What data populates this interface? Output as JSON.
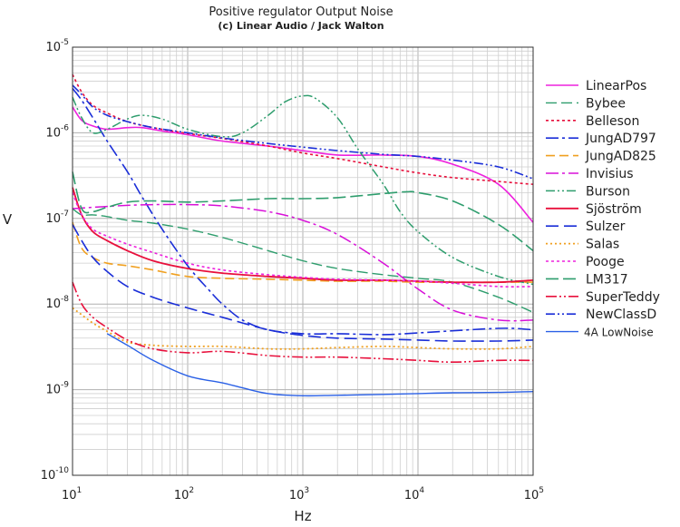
{
  "chart_data": {
    "type": "line",
    "title": "Positive regulator Output Noise",
    "subtitle": "(c) Linear Audio / Jack Walton",
    "xlabel": "Hz",
    "ylabel": "V",
    "x_scale": "log",
    "y_scale": "log",
    "xlim": [
      10,
      100000
    ],
    "ylim": [
      1e-10,
      1e-05
    ],
    "grid": true,
    "legend_position": "right",
    "x_tick_labels": [
      {
        "value": 10,
        "base": "10",
        "exp": "1"
      },
      {
        "value": 100,
        "base": "10",
        "exp": "2"
      },
      {
        "value": 1000,
        "base": "10",
        "exp": "3"
      },
      {
        "value": 10000,
        "base": "10",
        "exp": "4"
      },
      {
        "value": 100000,
        "base": "10",
        "exp": "5"
      }
    ],
    "y_tick_labels": [
      {
        "value": 1e-05,
        "base": "10",
        "exp": "-5"
      },
      {
        "value": 1e-06,
        "base": "10",
        "exp": "-6"
      },
      {
        "value": 1e-07,
        "base": "10",
        "exp": "-7"
      },
      {
        "value": 1e-08,
        "base": "10",
        "exp": "-8"
      },
      {
        "value": 1e-09,
        "base": "10",
        "exp": "-9"
      },
      {
        "value": 1e-10,
        "base": "10",
        "exp": "-10"
      }
    ],
    "series": [
      {
        "name": "LinearPos",
        "color": "#ee22dd",
        "dash": "",
        "width": 1.6,
        "x": [
          10,
          12,
          15,
          20,
          30,
          40,
          60,
          100,
          200,
          500,
          1000,
          2000,
          5000,
          10000,
          20000,
          50000,
          100000
        ],
        "y": [
          2e-06,
          1.4e-06,
          1.2e-06,
          1.1e-06,
          1.15e-06,
          1.15e-06,
          1.05e-06,
          9.5e-07,
          8e-07,
          7e-07,
          6.2e-07,
          5.5e-07,
          5.5e-07,
          5.3e-07,
          4.3e-07,
          2.5e-07,
          9e-08
        ]
      },
      {
        "name": "Bybee",
        "color": "#2e9d6d",
        "dash": "12,5",
        "width": 1.4,
        "x": [
          10,
          12,
          15,
          20,
          30,
          50,
          100,
          200,
          500,
          1000,
          2000,
          5000,
          10000,
          20000,
          50000,
          100000
        ],
        "y": [
          1.3e-07,
          1.1e-07,
          1.1e-07,
          1.05e-07,
          9.5e-08,
          8.8e-08,
          7.5e-08,
          6e-08,
          4.2e-08,
          3.2e-08,
          2.6e-08,
          2.2e-08,
          2e-08,
          1.8e-08,
          1.2e-08,
          8e-09
        ]
      },
      {
        "name": "Belleson",
        "color": "#e8103c",
        "dash": "3,3",
        "width": 1.6,
        "x": [
          10,
          12,
          15,
          20,
          30,
          50,
          100,
          200,
          500,
          1000,
          2000,
          5000,
          10000,
          20000,
          50000,
          100000
        ],
        "y": [
          4.8e-06,
          3e-06,
          2.1e-06,
          1.7e-06,
          1.35e-06,
          1.15e-06,
          9.8e-07,
          8.6e-07,
          7e-07,
          5.8e-07,
          5e-07,
          4e-07,
          3.4e-07,
          3e-07,
          2.7e-07,
          2.5e-07
        ]
      },
      {
        "name": "JungAD797",
        "color": "#1a2ed8",
        "dash": "14,4,3,4",
        "width": 1.6,
        "x": [
          10,
          12,
          15,
          20,
          30,
          40,
          60,
          100,
          150,
          200,
          300,
          500,
          1000,
          2000,
          5000,
          10000,
          50000,
          100000
        ],
        "y": [
          3.3e-06,
          2.4e-06,
          1.5e-06,
          8e-07,
          3.5e-07,
          1.8e-07,
          7.5e-08,
          2.8e-08,
          1.5e-08,
          1e-08,
          6.5e-09,
          5e-09,
          4.5e-09,
          4.5e-09,
          4.4e-09,
          4.6e-09,
          5.2e-09,
          5e-09
        ]
      },
      {
        "name": "JungAD825",
        "color": "#f0a020",
        "dash": "10,5",
        "width": 1.6,
        "x": [
          10,
          12,
          15,
          20,
          30,
          50,
          100,
          200,
          500,
          1000,
          2000,
          5000,
          10000,
          50000,
          100000
        ],
        "y": [
          9e-08,
          4.5e-08,
          3.5e-08,
          3e-08,
          2.8e-08,
          2.5e-08,
          2.1e-08,
          2e-08,
          1.95e-08,
          1.9e-08,
          1.85e-08,
          1.85e-08,
          1.8e-08,
          1.8e-08,
          1.8e-08
        ]
      },
      {
        "name": "Invisius",
        "color": "#d810d8",
        "dash": "14,4,3,4",
        "width": 1.5,
        "x": [
          10,
          12,
          15,
          20,
          30,
          50,
          100,
          200,
          500,
          1000,
          2000,
          5000,
          10000,
          20000,
          50000,
          100000
        ],
        "y": [
          1.3e-07,
          1.32e-07,
          1.35e-07,
          1.38e-07,
          1.42e-07,
          1.45e-07,
          1.45e-07,
          1.4e-07,
          1.2e-07,
          9.5e-08,
          6.5e-08,
          3e-08,
          1.5e-08,
          8.5e-09,
          6.5e-09,
          6.5e-09
        ]
      },
      {
        "name": "Burson",
        "color": "#2e9d6d",
        "dash": "10,3,2,3,2,3",
        "width": 1.5,
        "x": [
          10,
          12,
          15,
          20,
          30,
          40,
          60,
          100,
          200,
          300,
          500,
          700,
          1000,
          1300,
          2000,
          3000,
          5000,
          7000,
          10000,
          20000,
          50000,
          100000
        ],
        "y": [
          2.6e-06,
          1.5e-06,
          1e-06,
          1.1e-06,
          1.45e-06,
          1.6e-06,
          1.45e-06,
          1.1e-06,
          9e-07,
          1e-06,
          1.6e-06,
          2.3e-06,
          2.7e-06,
          2.5e-06,
          1.5e-06,
          6.5e-07,
          2.5e-07,
          1.2e-07,
          7e-08,
          3.5e-08,
          2.1e-08,
          1.7e-08
        ]
      },
      {
        "name": "Sjöström",
        "color": "#e8103c",
        "dash": "",
        "width": 1.8,
        "x": [
          10,
          12,
          15,
          20,
          30,
          50,
          100,
          200,
          500,
          1000,
          2000,
          5000,
          10000,
          20000,
          50000,
          100000
        ],
        "y": [
          2.3e-07,
          1.1e-07,
          7e-08,
          5.5e-08,
          4.2e-08,
          3.2e-08,
          2.6e-08,
          2.3e-08,
          2.1e-08,
          2e-08,
          1.9e-08,
          1.9e-08,
          1.85e-08,
          1.8e-08,
          1.8e-08,
          1.9e-08
        ]
      },
      {
        "name": "Sulzer",
        "color": "#1a2ed8",
        "dash": "14,6",
        "width": 1.6,
        "x": [
          10,
          12,
          15,
          20,
          30,
          50,
          100,
          200,
          500,
          1000,
          2000,
          5000,
          10000,
          20000,
          50000,
          100000
        ],
        "y": [
          8.5e-08,
          5.5e-08,
          3.5e-08,
          2.4e-08,
          1.6e-08,
          1.2e-08,
          9e-09,
          7e-09,
          5e-09,
          4.3e-09,
          4e-09,
          3.9e-09,
          3.8e-09,
          3.7e-09,
          3.7e-09,
          3.8e-09
        ]
      },
      {
        "name": "Salas",
        "color": "#f0a020",
        "dash": "2,3",
        "width": 1.8,
        "x": [
          10,
          12,
          15,
          20,
          30,
          50,
          100,
          200,
          500,
          1000,
          2000,
          5000,
          10000,
          20000,
          50000,
          100000
        ],
        "y": [
          9e-09,
          7.5e-09,
          6e-09,
          4.8e-09,
          3.6e-09,
          3.3e-09,
          3.2e-09,
          3.2e-09,
          3e-09,
          3e-09,
          3.1e-09,
          3.2e-09,
          3.1e-09,
          3e-09,
          3e-09,
          3.2e-09
        ]
      },
      {
        "name": "Pooge",
        "color": "#ee22dd",
        "dash": "3,3",
        "width": 1.6,
        "x": [
          10,
          12,
          15,
          20,
          30,
          50,
          100,
          200,
          500,
          1000,
          2000,
          5000,
          10000,
          20000,
          50000,
          100000
        ],
        "y": [
          2e-07,
          1.1e-07,
          7.5e-08,
          6.2e-08,
          5e-08,
          4e-08,
          3e-08,
          2.5e-08,
          2.2e-08,
          2.05e-08,
          1.95e-08,
          1.9e-08,
          1.85e-08,
          1.75e-08,
          1.6e-08,
          1.6e-08
        ]
      },
      {
        "name": "LM317",
        "color": "#2e9d6d",
        "dash": "14,5",
        "width": 1.6,
        "x": [
          10,
          12,
          15,
          20,
          30,
          50,
          100,
          200,
          500,
          1000,
          2000,
          5000,
          8000,
          10000,
          20000,
          50000,
          100000
        ],
        "y": [
          3.5e-07,
          1.3e-07,
          1.2e-07,
          1.35e-07,
          1.55e-07,
          1.6e-07,
          1.55e-07,
          1.6e-07,
          1.7e-07,
          1.7e-07,
          1.75e-07,
          1.95e-07,
          2.05e-07,
          2e-07,
          1.6e-07,
          8.5e-08,
          4.2e-08
        ]
      },
      {
        "name": "SuperTeddy",
        "color": "#e8103c",
        "dash": "12,3,2,3,2,3",
        "width": 1.6,
        "x": [
          10,
          12,
          15,
          20,
          30,
          50,
          100,
          200,
          500,
          1000,
          2000,
          5000,
          10000,
          20000,
          50000,
          100000
        ],
        "y": [
          1.8e-08,
          1e-08,
          7e-09,
          5.3e-09,
          3.8e-09,
          3e-09,
          2.7e-09,
          2.8e-09,
          2.5e-09,
          2.4e-09,
          2.4e-09,
          2.3e-09,
          2.2e-09,
          2.1e-09,
          2.2e-09,
          2.2e-09
        ]
      },
      {
        "name": "NewClassD",
        "color": "#1a2ed8",
        "dash": "10,3,2,3,2,3",
        "width": 1.6,
        "x": [
          10,
          12,
          15,
          20,
          30,
          50,
          100,
          200,
          500,
          1000,
          2000,
          5000,
          10000,
          20000,
          50000,
          100000
        ],
        "y": [
          3.6e-06,
          2.8e-06,
          2e-06,
          1.6e-06,
          1.35e-06,
          1.15e-06,
          1e-06,
          8.7e-07,
          7.5e-07,
          6.8e-07,
          6.2e-07,
          5.6e-07,
          5.3e-07,
          4.8e-07,
          4e-07,
          2.9e-07
        ]
      },
      {
        "name": "4A LowNoise",
        "color": "#2a60e6",
        "dash": "",
        "width": 1.4,
        "x": [
          20,
          30,
          50,
          100,
          200,
          300,
          500,
          1000,
          2000,
          5000,
          10000,
          20000,
          50000,
          100000
        ],
        "y": [
          4.5e-09,
          3.3e-09,
          2.2e-09,
          1.45e-09,
          1.2e-09,
          1.05e-09,
          9e-10,
          8.5e-10,
          8.6e-10,
          8.8e-10,
          9e-10,
          9.2e-10,
          9.3e-10,
          9.5e-10
        ]
      }
    ]
  }
}
